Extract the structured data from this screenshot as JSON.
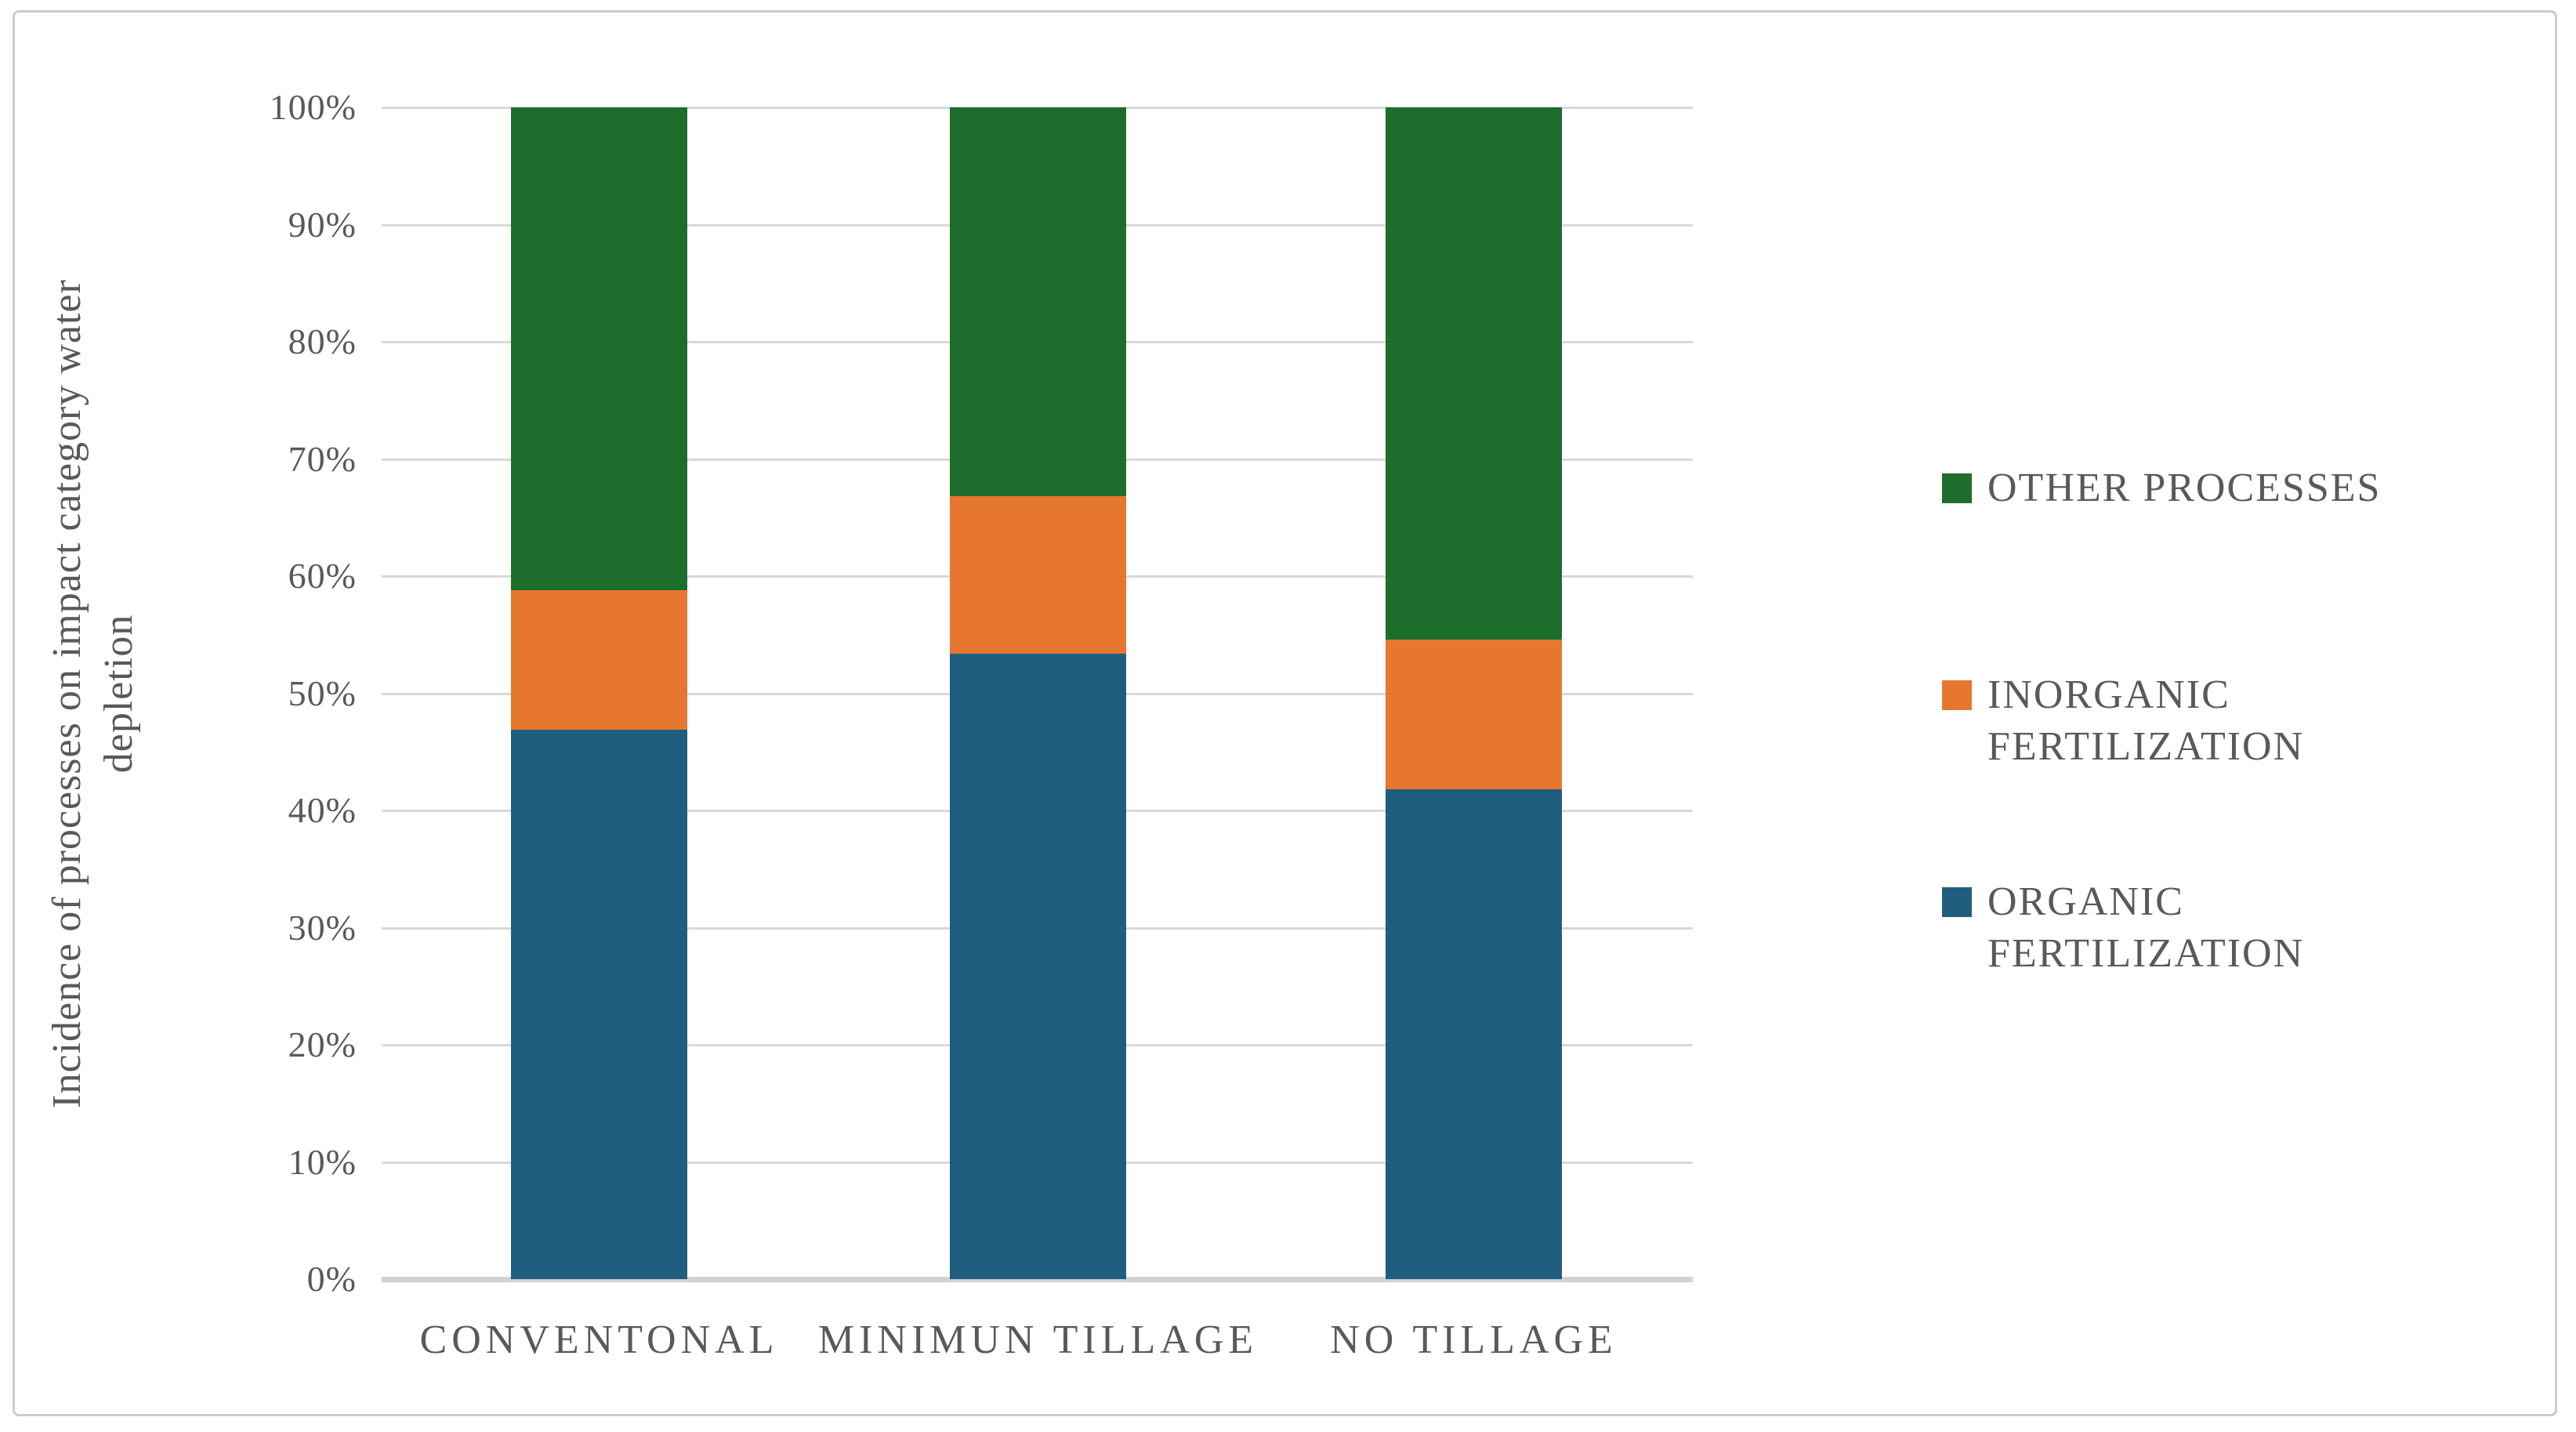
{
  "figure": {
    "background": "#ffffff",
    "border_color": "#c9cccf",
    "text_color": "#595959",
    "gridline_color": "#d9d9d9",
    "axisline_color": "#d2d2d2"
  },
  "chart_data": {
    "type": "bar",
    "subtype": "stacked-100-percent",
    "title": "",
    "xlabel": "",
    "ylabel": "Incidence of processes on impact category water depletion",
    "ylabel_lines": [
      "Incidence of processes on impact category water",
      "depletion"
    ],
    "categories": [
      "CONVENTONAL",
      "MINIMUN TILLAGE",
      "NO TILLAGE"
    ],
    "series": [
      {
        "name": "ORGANIC FERTILIZATION",
        "color": "#1f5e7f",
        "values": [
          46.9,
          53.4,
          41.8
        ]
      },
      {
        "name": "INORGANIC FERTILIZATION",
        "color": "#e7772f",
        "values": [
          11.9,
          13.4,
          12.8
        ]
      },
      {
        "name": "OTHER PROCESSES",
        "color": "#1d6d2c",
        "values": [
          41.2,
          33.2,
          45.4
        ]
      }
    ],
    "y_ticks": [
      "100%",
      "90%",
      "80%",
      "70%",
      "60%",
      "50%",
      "40%",
      "30%",
      "20%",
      "10%",
      "0%"
    ],
    "ylim": [
      0,
      100
    ],
    "grid": true,
    "legend_position": "right",
    "legend_entries": [
      {
        "color": "#1d6d2c",
        "lines": [
          "OTHER PROCESSES"
        ]
      },
      {
        "color": "#e7772f",
        "lines": [
          "INORGANIC",
          "FERTILIZATION"
        ]
      },
      {
        "color": "#1f5e7f",
        "lines": [
          "ORGANIC",
          "FERTILIZATION"
        ]
      }
    ]
  }
}
